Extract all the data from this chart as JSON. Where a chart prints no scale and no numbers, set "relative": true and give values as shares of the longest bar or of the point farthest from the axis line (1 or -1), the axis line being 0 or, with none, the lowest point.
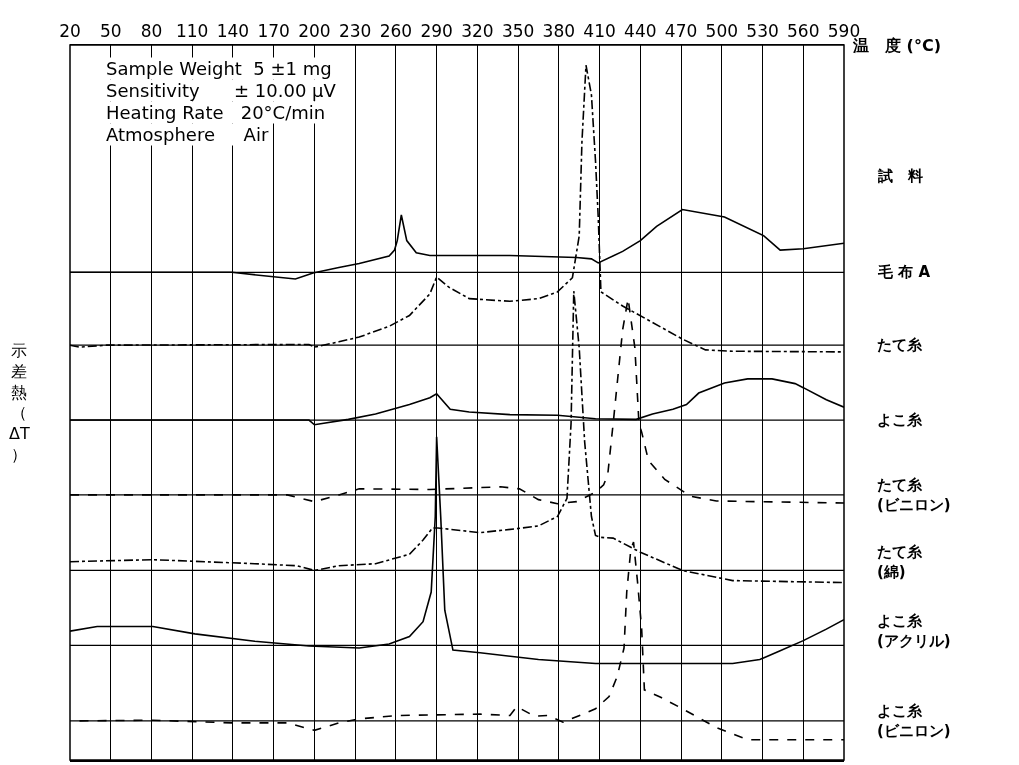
{
  "chart_data": {
    "type": "line",
    "relative": true,
    "xlabel": "温　度 (°C)",
    "ylabel": "示差熱（ΔT）",
    "legend_title": "試　料",
    "annotations": [
      "Sample Weight  5 ±1 mg",
      "Sensitivity      ± 10.00 μV",
      "Heating Rate   20°C/min",
      "Atmosphere     Air"
    ],
    "xlim": [
      20,
      590
    ],
    "xticks": [
      20,
      50,
      80,
      110,
      140,
      170,
      200,
      230,
      260,
      290,
      320,
      350,
      380,
      410,
      440,
      470,
      500,
      530,
      560,
      590
    ],
    "grid": "x",
    "legend": false,
    "tick_labels": "x",
    "ref_lines": [
      {
        "axis": "y",
        "value": 0.693,
        "color": "#000000"
      },
      {
        "axis": "y",
        "value": 0.585,
        "color": "#000000"
      },
      {
        "axis": "y",
        "value": 0.474,
        "color": "#000000"
      },
      {
        "axis": "y",
        "value": 0.363,
        "color": "#000000"
      },
      {
        "axis": "y",
        "value": 0.251,
        "color": "#000000"
      },
      {
        "axis": "y",
        "value": 0.14,
        "color": "#000000"
      },
      {
        "axis": "y",
        "value": 0.028,
        "color": "#000000"
      }
    ],
    "series": [
      {
        "name": "毛 布 A",
        "color": "#000000",
        "line_style": "solid",
        "x": [
          20,
          139,
          186,
          199,
          218,
          233,
          255,
          259,
          261,
          264,
          268,
          275,
          285,
          344,
          393,
          404,
          409,
          427,
          440,
          452,
          471,
          502,
          531,
          543,
          560,
          590
        ],
        "values": [
          0.693,
          0.693,
          0.683,
          0.692,
          0.7,
          0.706,
          0.717,
          0.726,
          0.74,
          0.778,
          0.74,
          0.722,
          0.718,
          0.718,
          0.715,
          0.713,
          0.707,
          0.724,
          0.74,
          0.761,
          0.786,
          0.775,
          0.747,
          0.726,
          0.728,
          0.736
        ]
      },
      {
        "name": "たて糸",
        "color": "#000000",
        "line_style": "dashdot",
        "x": [
          20,
          27,
          47,
          196,
          200,
          218,
          233,
          255,
          270,
          285,
          290,
          299,
          314,
          344,
          365,
          379,
          390,
          395,
          397,
          400,
          404,
          407,
          409,
          411,
          427,
          446,
          471,
          488,
          508,
          590
        ],
        "values": [
          0.585,
          0.582,
          0.585,
          0.586,
          0.582,
          0.59,
          0.597,
          0.613,
          0.629,
          0.661,
          0.686,
          0.671,
          0.654,
          0.65,
          0.654,
          0.664,
          0.685,
          0.747,
          0.886,
          1,
          0.956,
          0.858,
          0.775,
          0.664,
          0.643,
          0.622,
          0.594,
          0.578,
          0.576,
          0.575
        ]
      },
      {
        "name": "よこ糸",
        "color": "#000000",
        "line_style": "solid",
        "x": [
          20,
          196,
          200,
          225,
          245,
          270,
          285,
          290,
          300,
          314,
          344,
          379,
          407,
          437,
          449,
          464,
          474,
          483,
          502,
          519,
          537,
          554,
          560,
          577,
          590
        ],
        "values": [
          0.474,
          0.474,
          0.467,
          0.475,
          0.483,
          0.497,
          0.507,
          0.513,
          0.49,
          0.486,
          0.482,
          0.481,
          0.476,
          0.475,
          0.483,
          0.49,
          0.497,
          0.514,
          0.529,
          0.535,
          0.535,
          0.528,
          0.522,
          0.504,
          0.493
        ]
      },
      {
        "name": "たて糸\n(ビニロン)",
        "color": "#000000",
        "line_style": "dashed",
        "x": [
          20,
          180,
          200,
          218,
          233,
          285,
          337,
          351,
          365,
          379,
          393,
          407,
          413,
          416,
          420,
          427,
          431,
          436,
          439,
          441,
          446,
          458,
          477,
          496,
          590
        ],
        "values": [
          0.363,
          0.363,
          0.353,
          0.363,
          0.372,
          0.371,
          0.375,
          0.372,
          0.356,
          0.35,
          0.353,
          0.367,
          0.378,
          0.393,
          0.469,
          0.608,
          0.654,
          0.581,
          0.469,
          0.456,
          0.414,
          0.386,
          0.361,
          0.354,
          0.351
        ]
      },
      {
        "name": "たて糸\n(綿)",
        "color": "#000000",
        "line_style": "dashdot",
        "x": [
          20,
          81,
          156,
          187,
          200,
          218,
          245,
          270,
          280,
          287,
          291,
          322,
          349,
          365,
          379,
          386,
          389,
          391,
          395,
          399,
          404,
          407,
          411,
          420,
          439,
          471,
          508,
          590
        ],
        "values": [
          0.264,
          0.267,
          0.261,
          0.258,
          0.251,
          0.258,
          0.261,
          0.275,
          0.296,
          0.314,
          0.314,
          0.307,
          0.313,
          0.317,
          0.331,
          0.358,
          0.469,
          0.665,
          0.581,
          0.442,
          0.331,
          0.303,
          0.3,
          0.299,
          0.279,
          0.251,
          0.236,
          0.233
        ]
      },
      {
        "name": "よこ糸\n(アクリル)",
        "color": "#000000",
        "line_style": "solid",
        "x": [
          20,
          40,
          81,
          112,
          156,
          196,
          233,
          255,
          270,
          280,
          286,
          289,
          290,
          293,
          296,
          302,
          322,
          365,
          407,
          483,
          508,
          528,
          543,
          560,
          577,
          590
        ],
        "values": [
          0.161,
          0.168,
          0.168,
          0.157,
          0.146,
          0.139,
          0.136,
          0.142,
          0.153,
          0.175,
          0.219,
          0.331,
          0.449,
          0.331,
          0.192,
          0.133,
          0.129,
          0.119,
          0.113,
          0.113,
          0.113,
          0.119,
          0.132,
          0.147,
          0.164,
          0.178
        ]
      },
      {
        "name": "よこ糸\n(ビニロン)",
        "color": "#000000",
        "line_style": "dashed",
        "x": [
          27,
          81,
          139,
          180,
          200,
          218,
          233,
          262,
          322,
          344,
          349,
          362,
          372,
          383,
          399,
          407,
          417,
          423,
          428,
          430,
          433,
          435,
          438,
          441,
          443,
          455,
          471,
          496,
          519,
          590
        ],
        "values": [
          0.028,
          0.029,
          0.025,
          0.025,
          0.014,
          0.025,
          0.031,
          0.036,
          0.038,
          0.036,
          0.049,
          0.035,
          0.036,
          0.026,
          0.039,
          0.046,
          0.064,
          0.094,
          0.136,
          0.219,
          0.282,
          0.293,
          0.233,
          0.164,
          0.074,
          0.063,
          0.046,
          0.018,
          0,
          0
        ]
      }
    ]
  }
}
